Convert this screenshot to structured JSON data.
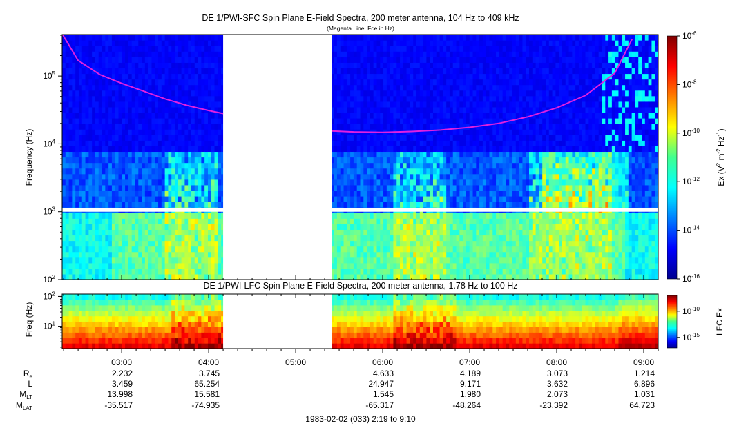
{
  "chart_data": [
    {
      "type": "heatmap",
      "title": "DE 1/PWI-SFC  Spin Plane E-Field Spectra, 200 meter antenna, 104 Hz to 409 kHz",
      "subtitle": "(Magenta Line: Fce in Hz)",
      "ylabel": "Frequency (Hz)",
      "yscale": "log",
      "ylim": [
        100,
        409000
      ],
      "yticks": [
        {
          "value": 100,
          "base": "10",
          "exp": "2"
        },
        {
          "value": 1000,
          "base": "10",
          "exp": "3"
        },
        {
          "value": 10000,
          "base": "10",
          "exp": "4"
        },
        {
          "value": 100000,
          "base": "10",
          "exp": "5"
        }
      ],
      "colorbar": {
        "label_prefix": "Ex (V",
        "label_sup1": "2",
        "label_mid": " m",
        "label_sup2": "-2",
        "label_mid2": " Hz",
        "label_sup3": "-1",
        "label_suffix": ")",
        "scale": "log",
        "range": [
          1e-16,
          1e-06
        ],
        "ticks": [
          {
            "value": 1e-06,
            "base": "10",
            "exp": "-6"
          },
          {
            "value": 1e-08,
            "base": "10",
            "exp": "-8"
          },
          {
            "value": 1e-10,
            "base": "10",
            "exp": "-10"
          },
          {
            "value": 1e-12,
            "base": "10",
            "exp": "-12"
          },
          {
            "value": 1e-14,
            "base": "10",
            "exp": "-14"
          },
          {
            "value": 1e-16,
            "base": "10",
            "exp": "-16"
          }
        ]
      },
      "data_gaps": [
        {
          "from": "04:10",
          "to": "05:25"
        }
      ],
      "series": [
        {
          "name": "Fce",
          "color": "#e020e0",
          "segments": [
            [
              [
                "02:19",
                420000
              ],
              [
                "02:30",
                170000
              ],
              [
                "02:45",
                105000
              ],
              [
                "03:00",
                78000
              ],
              [
                "03:15",
                60000
              ],
              [
                "03:30",
                46000
              ],
              [
                "03:45",
                37000
              ],
              [
                "04:00",
                31000
              ],
              [
                "04:10",
                28000
              ]
            ],
            [
              [
                "05:25",
                15500
              ],
              [
                "05:40",
                15000
              ],
              [
                "06:00",
                14800
              ],
              [
                "06:20",
                15200
              ],
              [
                "06:40",
                16000
              ],
              [
                "07:00",
                17500
              ],
              [
                "07:20",
                20000
              ],
              [
                "07:40",
                25000
              ],
              [
                "08:00",
                34000
              ],
              [
                "08:20",
                52000
              ],
              [
                "08:40",
                110000
              ],
              [
                "08:52",
                350000
              ]
            ]
          ]
        }
      ]
    },
    {
      "type": "heatmap",
      "title": "DE 1/PWI-LFC  Spin Plane E-Field Spectra, 200 meter antenna, 1.78 Hz to 100 Hz",
      "ylabel": "Freq (Hz)",
      "yscale": "log",
      "ylim": [
        1.78,
        120
      ],
      "yticks": [
        {
          "value": 10,
          "base": "10",
          "exp": "1"
        },
        {
          "value": 100,
          "base": "10",
          "exp": "2"
        }
      ],
      "colorbar": {
        "label": "LFC Ex",
        "scale": "log",
        "ticks": [
          {
            "value": 1e-10,
            "base": "10",
            "exp": "-10"
          },
          {
            "value": 1e-15,
            "base": "10",
            "exp": "-15"
          }
        ]
      },
      "data_gaps": [
        {
          "from": "04:10",
          "to": "05:25"
        }
      ]
    }
  ],
  "time_axis": {
    "start": "02:19",
    "end": "09:10",
    "ticks": [
      "03:00",
      "04:00",
      "05:00",
      "06:00",
      "07:00",
      "08:00",
      "09:00"
    ]
  },
  "ephemeris": {
    "rows": [
      {
        "label": "R",
        "sub": "e",
        "values": [
          "2.232",
          "3.745",
          "",
          "4.633",
          "4.189",
          "3.073",
          "1.214"
        ]
      },
      {
        "label": "L",
        "sub": "",
        "values": [
          "3.459",
          "65.254",
          "",
          "24.947",
          "9.171",
          "3.632",
          "6.896"
        ]
      },
      {
        "label": "M",
        "sub": "LT",
        "values": [
          "13.998",
          "15.581",
          "",
          "1.545",
          "1.980",
          "2.073",
          "1.031"
        ]
      },
      {
        "label": "M",
        "sub": "LAT",
        "values": [
          "-35.517",
          "-74.935",
          "",
          "-65.317",
          "-48.264",
          "-23.392",
          "64.723"
        ]
      }
    ]
  },
  "footer": "1983-02-02 (033) 2:19 to 9:10"
}
